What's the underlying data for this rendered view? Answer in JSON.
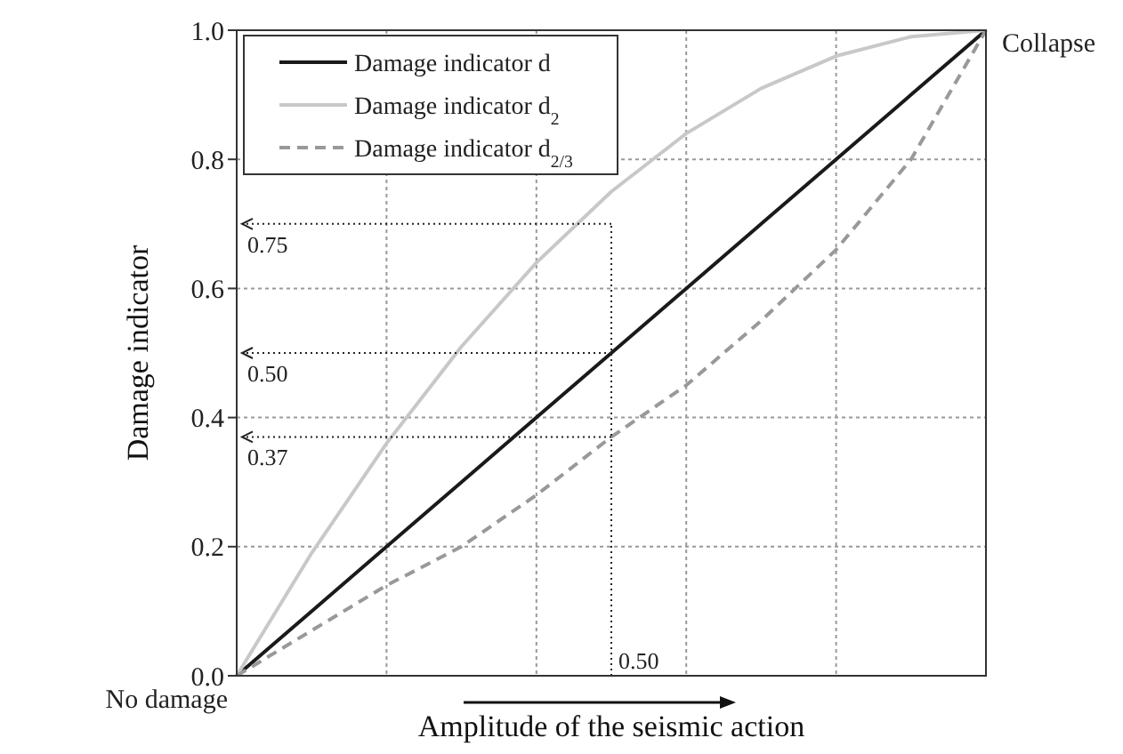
{
  "chart_data": {
    "type": "line",
    "ylabel": "Damage indicator",
    "xlabel": "Amplitude of the seismic action",
    "categories": [
      null,
      null,
      null,
      null,
      null,
      null,
      null,
      null,
      null,
      null,
      null
    ],
    "series": [
      {
        "name": "Damage indicator d",
        "color": "#1a1a1a",
        "line_style": "solid",
        "values": [
          0,
          0.1,
          0.2,
          0.3,
          0.4,
          0.5,
          0.6,
          0.7,
          0.8,
          0.9,
          1
        ]
      },
      {
        "name": "Damage indicator d$_{2}$",
        "color": "#c8c8c8",
        "line_style": "solid",
        "values": [
          0,
          0.19,
          0.36,
          0.51,
          0.64,
          0.75,
          0.84,
          0.91,
          0.96,
          0.99,
          1
        ]
      },
      {
        "name": "Damage indicator d$_{2/3}$",
        "color": "#999999",
        "line_style": "dashed",
        "values": [
          0,
          0.07,
          0.14,
          0.2,
          0.28,
          0.37,
          0.45,
          0.55,
          0.66,
          0.8,
          1
        ]
      }
    ],
    "ylim": [
      0,
      1
    ],
    "yticks": [
      {
        "value": 0,
        "label": "0.0"
      },
      {
        "value": 0.2,
        "label": "0.2"
      },
      {
        "value": 0.4,
        "label": "0.4"
      },
      {
        "value": 0.6,
        "label": "0.6"
      },
      {
        "value": 0.8,
        "label": "0.8"
      },
      {
        "value": 1,
        "label": "1.0"
      }
    ],
    "tick_labels": "y",
    "grid": true,
    "legend": "top left",
    "marker": "none",
    "ref_lines": [
      {
        "axis": "y",
        "value": 0.7,
        "line_style": "dotted",
        "color": "#222222"
      },
      {
        "axis": "y",
        "value": 0.5,
        "label": "0.50",
        "line_style": "dotted",
        "color": "#222222"
      },
      {
        "axis": "y",
        "value": 0.37,
        "label": "0.37",
        "line_style": "dotted",
        "color": "#222222"
      }
    ],
    "annotations": [
      "0.50",
      "Collapse",
      "No damage",
      "0.75"
    ]
  }
}
